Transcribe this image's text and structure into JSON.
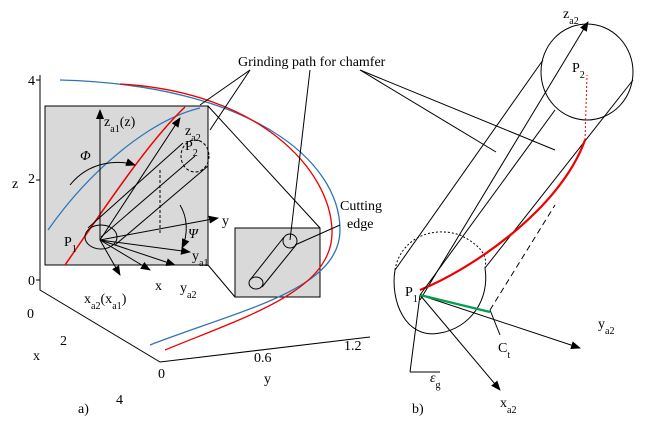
{
  "left": {
    "title": "Grinding path for chamfer",
    "cutting_edge": [
      "Cutting",
      "edge"
    ],
    "z_axis": {
      "label": "z",
      "ticks": [
        "4",
        "2",
        "0"
      ]
    },
    "x_axis": {
      "label": "x",
      "ticks": [
        "0",
        "2",
        "4"
      ]
    },
    "y_axis": {
      "label": "y",
      "ticks": [
        "0",
        "0.6",
        "1.2"
      ]
    },
    "labels": {
      "za1": [
        {
          "text": "z"
        },
        {
          "text": "a1",
          "sub": true
        },
        {
          "text": "(z)"
        }
      ],
      "phi": [
        {
          "text": "Φ"
        }
      ],
      "p1": [
        {
          "text": "P"
        },
        {
          "text": "1",
          "sub": true
        }
      ],
      "p2": [
        {
          "text": "P"
        },
        {
          "text": "2",
          "sub": true
        }
      ],
      "za2": [
        {
          "text": "z"
        },
        {
          "text": "a2",
          "sub": true
        }
      ],
      "y": [
        {
          "text": "y"
        }
      ],
      "ya1": [
        {
          "text": "y"
        },
        {
          "text": "a1",
          "sub": true
        }
      ],
      "psi": [
        {
          "text": "Ψ"
        }
      ],
      "xa2": [
        {
          "text": "x"
        },
        {
          "text": "a2",
          "sub": true
        },
        {
          "text": "(x"
        },
        {
          "text": "a1",
          "sub": true
        },
        {
          "text": ")"
        }
      ],
      "x": [
        {
          "text": "x"
        }
      ],
      "ya2": [
        {
          "text": "y"
        },
        {
          "text": "a2",
          "sub": true
        }
      ]
    },
    "caption": "a)"
  },
  "right": {
    "labels": {
      "za2": [
        {
          "text": "z"
        },
        {
          "text": "a2",
          "sub": true
        }
      ],
      "p2": [
        {
          "text": "P"
        },
        {
          "text": "2",
          "sub": true
        }
      ],
      "p1": [
        {
          "text": "P"
        },
        {
          "text": "1",
          "sub": true
        }
      ],
      "ya2": [
        {
          "text": "y"
        },
        {
          "text": "a2",
          "sub": true
        }
      ],
      "ct": [
        {
          "text": "C"
        },
        {
          "text": "t",
          "sub": true
        }
      ],
      "xa2": [
        {
          "text": "x"
        },
        {
          "text": "a2",
          "sub": true
        }
      ],
      "eg": [
        {
          "text": "ε"
        },
        {
          "text": "g",
          "sub": true
        }
      ]
    },
    "caption": "b)"
  }
}
